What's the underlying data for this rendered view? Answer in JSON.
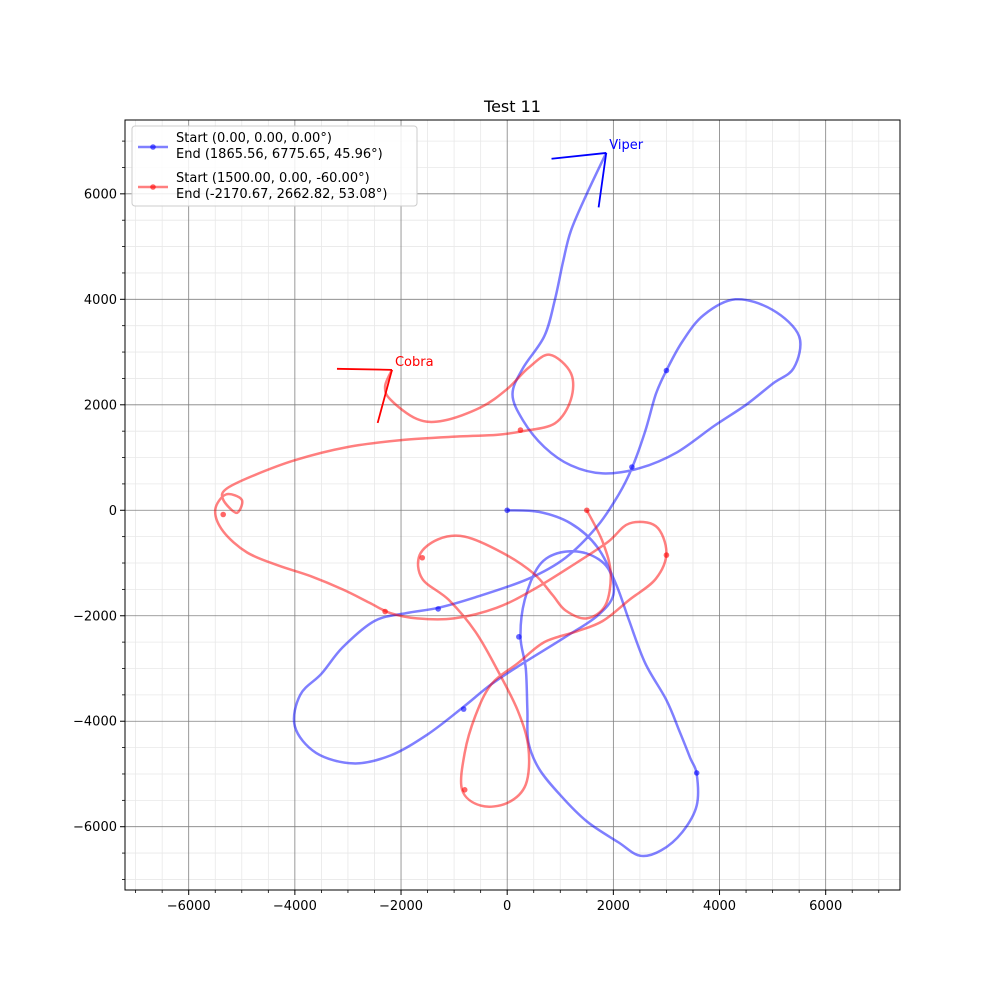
{
  "chart_data": {
    "type": "line",
    "title": "Test 11",
    "xlabel": "",
    "ylabel": "",
    "xlim": [
      -7200,
      7400
    ],
    "ylim": [
      -7200,
      7400
    ],
    "xticks": [
      -6000,
      -4000,
      -2000,
      0,
      2000,
      4000,
      6000
    ],
    "yticks": [
      -6000,
      -4000,
      -2000,
      0,
      2000,
      4000,
      6000
    ],
    "tick_labels": [
      "−6000",
      "−4000",
      "−2000",
      "0",
      "2000",
      "4000",
      "6000"
    ],
    "grid": true,
    "legend_placement": "top-left",
    "series": [
      {
        "name": "Start (0.00, 0.00, 0.00°)\n End  (1865.56, 6775.65, 45.96°)",
        "legend_line1": "Start (0.00, 0.00, 0.00°)",
        "legend_line2": " End  (1865.56, 6775.65, 45.96°)",
        "color": "#0000ff",
        "path": [
          [
            0,
            0
          ],
          [
            600,
            -30
          ],
          [
            1200,
            -250
          ],
          [
            1700,
            -700
          ],
          [
            2050,
            -1400
          ],
          [
            2300,
            -2100
          ],
          [
            2600,
            -2900
          ],
          [
            3000,
            -3600
          ],
          [
            3250,
            -4200
          ],
          [
            3450,
            -4700
          ],
          [
            3570,
            -5000
          ],
          [
            3570,
            -5600
          ],
          [
            3300,
            -6100
          ],
          [
            2900,
            -6450
          ],
          [
            2500,
            -6550
          ],
          [
            2100,
            -6300
          ],
          [
            1500,
            -5900
          ],
          [
            1000,
            -5400
          ],
          [
            600,
            -4900
          ],
          [
            400,
            -4400
          ],
          [
            380,
            -3800
          ],
          [
            350,
            -3000
          ],
          [
            250,
            -2400
          ],
          [
            330,
            -1700
          ],
          [
            600,
            -1050
          ],
          [
            1000,
            -800
          ],
          [
            1500,
            -820
          ],
          [
            1900,
            -1100
          ],
          [
            2000,
            -1600
          ],
          [
            1700,
            -2000
          ],
          [
            1100,
            -2400
          ],
          [
            300,
            -2900
          ],
          [
            -300,
            -3300
          ],
          [
            -850,
            -3750
          ],
          [
            -1500,
            -4250
          ],
          [
            -2200,
            -4650
          ],
          [
            -2900,
            -4800
          ],
          [
            -3600,
            -4600
          ],
          [
            -4000,
            -4100
          ],
          [
            -3900,
            -3500
          ],
          [
            -3500,
            -3100
          ],
          [
            -3100,
            -2600
          ],
          [
            -2500,
            -2100
          ],
          [
            -1900,
            -1950
          ],
          [
            -1300,
            -1850
          ],
          [
            -600,
            -1650
          ],
          [
            400,
            -1300
          ],
          [
            1100,
            -900
          ],
          [
            1700,
            -300
          ],
          [
            2100,
            300
          ],
          [
            2350,
            800
          ],
          [
            2600,
            1500
          ],
          [
            2800,
            2200
          ],
          [
            3000,
            2650
          ],
          [
            3300,
            3200
          ],
          [
            3700,
            3700
          ],
          [
            4300,
            4000
          ],
          [
            5000,
            3800
          ],
          [
            5500,
            3300
          ],
          [
            5400,
            2700
          ],
          [
            5000,
            2400
          ],
          [
            4500,
            2000
          ],
          [
            3900,
            1600
          ],
          [
            3200,
            1100
          ],
          [
            2500,
            800
          ],
          [
            1800,
            700
          ],
          [
            1200,
            850
          ],
          [
            700,
            1200
          ],
          [
            300,
            1700
          ],
          [
            100,
            2200
          ],
          [
            300,
            2700
          ],
          [
            700,
            3300
          ],
          [
            900,
            4000
          ],
          [
            1050,
            4700
          ],
          [
            1200,
            5300
          ],
          [
            1500,
            6000
          ],
          [
            1865.56,
            6775.65
          ]
        ],
        "markers": [
          [
            0,
            0
          ],
          [
            220,
            -2400
          ],
          [
            3570,
            -4980
          ],
          [
            -820,
            -3770
          ],
          [
            -1300,
            -1870
          ],
          [
            2350,
            820
          ],
          [
            3000,
            2650
          ]
        ],
        "annotation": {
          "label": "Viper",
          "x": 1865.56,
          "y": 6775.65,
          "heading_deg": 45.96
        }
      },
      {
        "name": "Start (1500.00, 0.00, -60.00°)\n End  (-2170.67, 2662.82, 53.08°)",
        "legend_line1": "Start (1500.00, 0.00, -60.00°)",
        "legend_line2": " End  (-2170.67, 2662.82, 53.08°)",
        "color": "#ff0000",
        "path": [
          [
            1500,
            0
          ],
          [
            1800,
            -600
          ],
          [
            1950,
            -1200
          ],
          [
            1850,
            -1800
          ],
          [
            1500,
            -2050
          ],
          [
            1100,
            -1900
          ],
          [
            850,
            -1600
          ],
          [
            500,
            -1200
          ],
          [
            -100,
            -800
          ],
          [
            -800,
            -500
          ],
          [
            -1300,
            -550
          ],
          [
            -1650,
            -850
          ],
          [
            -1600,
            -1300
          ],
          [
            -1100,
            -1700
          ],
          [
            -600,
            -2300
          ],
          [
            -200,
            -3000
          ],
          [
            200,
            -3800
          ],
          [
            400,
            -4500
          ],
          [
            350,
            -5200
          ],
          [
            0,
            -5550
          ],
          [
            -500,
            -5600
          ],
          [
            -850,
            -5300
          ],
          [
            -800,
            -4600
          ],
          [
            -600,
            -3900
          ],
          [
            -300,
            -3300
          ],
          [
            200,
            -2900
          ],
          [
            700,
            -2500
          ],
          [
            1300,
            -2300
          ],
          [
            1800,
            -2100
          ],
          [
            2300,
            -1700
          ],
          [
            2800,
            -1300
          ],
          [
            3000,
            -800
          ],
          [
            2800,
            -300
          ],
          [
            2300,
            -250
          ],
          [
            1900,
            -600
          ],
          [
            1300,
            -1000
          ],
          [
            500,
            -1500
          ],
          [
            -200,
            -1850
          ],
          [
            -1000,
            -2050
          ],
          [
            -1700,
            -2050
          ],
          [
            -2200,
            -1950
          ],
          [
            -2600,
            -1750
          ],
          [
            -3100,
            -1500
          ],
          [
            -3700,
            -1250
          ],
          [
            -4300,
            -1050
          ],
          [
            -4900,
            -800
          ],
          [
            -5350,
            -400
          ],
          [
            -5500,
            0
          ],
          [
            -5300,
            300
          ],
          [
            -5000,
            200
          ],
          [
            -5100,
            -50
          ],
          [
            -5350,
            200
          ],
          [
            -5300,
            400
          ],
          [
            -4800,
            650
          ],
          [
            -4000,
            950
          ],
          [
            -3000,
            1200
          ],
          [
            -2000,
            1330
          ],
          [
            -900,
            1400
          ],
          [
            -200,
            1430
          ],
          [
            300,
            1500
          ],
          [
            900,
            1650
          ],
          [
            1200,
            2100
          ],
          [
            1200,
            2600
          ],
          [
            800,
            2950
          ],
          [
            400,
            2700
          ],
          [
            0,
            2300
          ],
          [
            -500,
            1950
          ],
          [
            -1200,
            1700
          ],
          [
            -1700,
            1730
          ],
          [
            -2200,
            2100
          ],
          [
            -2300,
            2350
          ],
          [
            -2170.67,
            2662.82
          ]
        ],
        "markers": [
          [
            1500,
            0
          ],
          [
            3000,
            -850
          ],
          [
            -1600,
            -900
          ],
          [
            -800,
            -5300
          ],
          [
            -2300,
            -1920
          ],
          [
            -5350,
            -80
          ],
          [
            250,
            1520
          ]
        ],
        "annotation": {
          "label": "Cobra",
          "x": -2170.67,
          "y": 2662.82,
          "heading_deg": 53.08
        }
      }
    ]
  }
}
